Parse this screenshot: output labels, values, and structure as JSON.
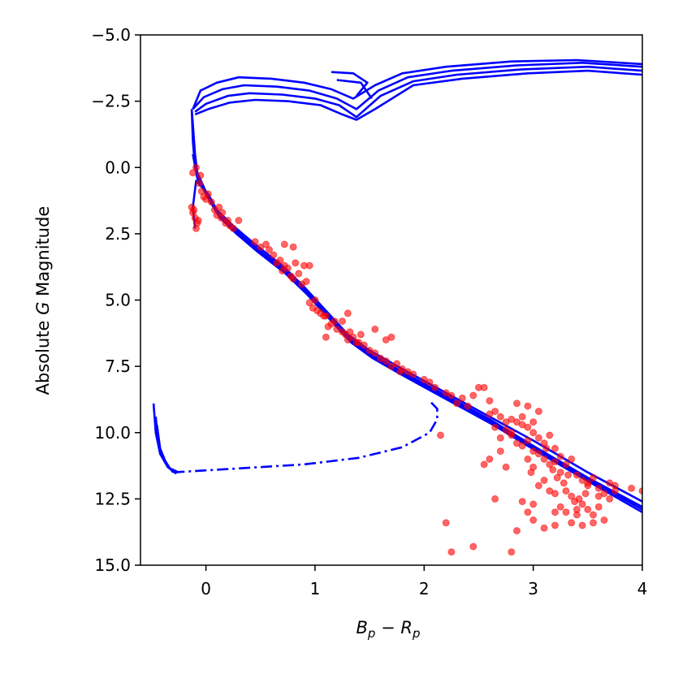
{
  "chart_data": {
    "type": "scatter",
    "title": "",
    "xlabel": "B_p − R_p",
    "ylabel": "Absolute G Magnitude",
    "xlim": [
      -0.6,
      4.0
    ],
    "ylim": [
      15.0,
      -5.0
    ],
    "y_inverted": true,
    "xticks": [
      0,
      1,
      2,
      3,
      4
    ],
    "yticks": [
      -5.0,
      -2.5,
      0.0,
      2.5,
      5.0,
      7.5,
      10.0,
      12.5,
      15.0
    ],
    "xtick_labels": [
      "0",
      "1",
      "2",
      "3",
      "4"
    ],
    "ytick_labels": [
      "−5.0",
      "−2.5",
      "0.0",
      "2.5",
      "5.0",
      "7.5",
      "10.0",
      "12.5",
      "15.0"
    ],
    "colors": {
      "isochrone": "#0000ff",
      "stars": "#ff0000"
    },
    "isochrones": [
      {
        "name": "isochrone-1",
        "points": [
          [
            -0.1,
            2.3
          ],
          [
            -0.12,
            1.5
          ],
          [
            -0.09,
            0.5
          ],
          [
            0.02,
            1.0
          ],
          [
            0.1,
            1.6
          ],
          [
            0.25,
            2.2
          ],
          [
            0.45,
            2.9
          ],
          [
            0.7,
            3.7
          ],
          [
            0.9,
            4.5
          ],
          [
            1.1,
            5.4
          ],
          [
            1.3,
            6.3
          ],
          [
            1.5,
            6.9
          ],
          [
            1.8,
            7.6
          ],
          [
            2.2,
            8.5
          ],
          [
            2.6,
            9.4
          ],
          [
            3.0,
            10.3
          ],
          [
            3.5,
            11.5
          ],
          [
            4.0,
            12.6
          ]
        ]
      },
      {
        "name": "isochrone-2",
        "points": [
          [
            -0.13,
            -2.2
          ],
          [
            -0.12,
            -1.0
          ],
          [
            -0.1,
            0.0
          ],
          [
            0.02,
            1.1
          ],
          [
            0.1,
            1.7
          ],
          [
            0.25,
            2.3
          ],
          [
            0.45,
            3.0
          ],
          [
            0.7,
            3.8
          ],
          [
            0.9,
            4.6
          ],
          [
            1.1,
            5.5
          ],
          [
            1.3,
            6.4
          ],
          [
            1.5,
            7.0
          ],
          [
            1.8,
            7.7
          ],
          [
            2.2,
            8.6
          ],
          [
            2.6,
            9.5
          ],
          [
            3.0,
            10.5
          ],
          [
            3.5,
            11.7
          ],
          [
            4.0,
            12.8
          ]
        ]
      },
      {
        "name": "isochrone-3",
        "points": [
          [
            -0.13,
            -2.2
          ],
          [
            -0.1,
            -0.5
          ],
          [
            -0.08,
            0.2
          ],
          [
            0.03,
            1.2
          ],
          [
            0.12,
            1.8
          ],
          [
            0.27,
            2.4
          ],
          [
            0.47,
            3.1
          ],
          [
            0.72,
            3.9
          ],
          [
            0.92,
            4.7
          ],
          [
            1.12,
            5.6
          ],
          [
            1.32,
            6.5
          ],
          [
            1.52,
            7.1
          ],
          [
            1.82,
            7.8
          ],
          [
            2.22,
            8.7
          ],
          [
            2.62,
            9.6
          ],
          [
            3.02,
            10.6
          ],
          [
            3.52,
            11.8
          ],
          [
            4.0,
            12.9
          ]
        ]
      },
      {
        "name": "isochrone-4",
        "points": [
          [
            -0.12,
            -0.5
          ],
          [
            -0.08,
            0.4
          ],
          [
            0.04,
            1.3
          ],
          [
            0.13,
            1.9
          ],
          [
            0.28,
            2.5
          ],
          [
            0.48,
            3.2
          ],
          [
            0.73,
            4.0
          ],
          [
            0.93,
            4.8
          ],
          [
            1.13,
            5.7
          ],
          [
            1.33,
            6.6
          ],
          [
            1.53,
            7.2
          ],
          [
            1.83,
            7.9
          ],
          [
            2.23,
            8.8
          ],
          [
            2.63,
            9.7
          ],
          [
            3.03,
            10.7
          ],
          [
            3.53,
            11.9
          ],
          [
            4.0,
            13.0
          ]
        ]
      },
      {
        "name": "giant-branch-1",
        "points": [
          [
            -0.12,
            -2.2
          ],
          [
            -0.05,
            -2.9
          ],
          [
            0.1,
            -3.2
          ],
          [
            0.3,
            -3.4
          ],
          [
            0.6,
            -3.35
          ],
          [
            0.9,
            -3.2
          ],
          [
            1.15,
            -2.95
          ],
          [
            1.35,
            -2.6
          ],
          [
            1.55,
            -3.1
          ],
          [
            1.8,
            -3.55
          ],
          [
            2.2,
            -3.8
          ],
          [
            2.8,
            -4.0
          ],
          [
            3.4,
            -4.05
          ],
          [
            4.0,
            -3.9
          ]
        ]
      },
      {
        "name": "giant-branch-2",
        "points": [
          [
            -0.12,
            -2.2
          ],
          [
            -0.02,
            -2.65
          ],
          [
            0.15,
            -2.95
          ],
          [
            0.35,
            -3.1
          ],
          [
            0.65,
            -3.05
          ],
          [
            0.95,
            -2.9
          ],
          [
            1.2,
            -2.6
          ],
          [
            1.38,
            -2.2
          ],
          [
            1.58,
            -2.9
          ],
          [
            1.85,
            -3.4
          ],
          [
            2.25,
            -3.65
          ],
          [
            2.85,
            -3.85
          ],
          [
            3.45,
            -3.95
          ],
          [
            4.0,
            -3.8
          ]
        ]
      },
      {
        "name": "giant-branch-3",
        "points": [
          [
            -0.1,
            -2.1
          ],
          [
            0.0,
            -2.4
          ],
          [
            0.2,
            -2.7
          ],
          [
            0.4,
            -2.8
          ],
          [
            0.7,
            -2.75
          ],
          [
            1.0,
            -2.6
          ],
          [
            1.22,
            -2.35
          ],
          [
            1.38,
            -1.9
          ],
          [
            1.6,
            -2.7
          ],
          [
            1.9,
            -3.25
          ],
          [
            2.3,
            -3.5
          ],
          [
            2.9,
            -3.7
          ],
          [
            3.5,
            -3.8
          ],
          [
            4.0,
            -3.65
          ]
        ]
      },
      {
        "name": "giant-branch-4",
        "points": [
          [
            -0.1,
            -2.0
          ],
          [
            0.02,
            -2.2
          ],
          [
            0.22,
            -2.45
          ],
          [
            0.45,
            -2.55
          ],
          [
            0.75,
            -2.5
          ],
          [
            1.05,
            -2.35
          ],
          [
            1.25,
            -2.0
          ],
          [
            1.38,
            -1.8
          ],
          [
            1.55,
            -2.2
          ],
          [
            1.9,
            -3.1
          ],
          [
            2.35,
            -3.35
          ],
          [
            2.95,
            -3.55
          ],
          [
            3.5,
            -3.65
          ],
          [
            4.0,
            -3.5
          ]
        ]
      },
      {
        "name": "giant-branch-tip",
        "points": [
          [
            1.15,
            -3.6
          ],
          [
            1.35,
            -3.55
          ],
          [
            1.48,
            -3.2
          ],
          [
            1.38,
            -2.7
          ]
        ]
      },
      {
        "name": "giant-branch-tip-2",
        "points": [
          [
            1.2,
            -3.3
          ],
          [
            1.42,
            -3.2
          ],
          [
            1.52,
            -2.6
          ]
        ]
      }
    ],
    "white_dwarf_tracks": [
      {
        "name": "wd-track-1",
        "points": [
          [
            -0.48,
            8.9
          ],
          [
            -0.46,
            10.0
          ],
          [
            -0.42,
            10.8
          ],
          [
            -0.35,
            11.3
          ],
          [
            -0.27,
            11.55
          ]
        ]
      },
      {
        "name": "wd-track-2",
        "points": [
          [
            -0.46,
            9.4
          ],
          [
            -0.44,
            10.3
          ],
          [
            -0.4,
            10.9
          ],
          [
            -0.33,
            11.35
          ],
          [
            -0.25,
            11.5
          ]
        ]
      },
      {
        "name": "wd-track-3",
        "points": [
          [
            -0.45,
            9.7
          ],
          [
            -0.42,
            10.6
          ],
          [
            -0.36,
            11.2
          ],
          [
            -0.3,
            11.5
          ]
        ]
      }
    ],
    "brown_dwarf_branch": {
      "name": "dash-dot-branch",
      "points": [
        [
          -0.3,
          11.5
        ],
        [
          0.3,
          11.35
        ],
        [
          0.9,
          11.2
        ],
        [
          1.4,
          10.95
        ],
        [
          1.8,
          10.55
        ],
        [
          2.05,
          10.0
        ],
        [
          2.12,
          9.5
        ],
        [
          2.12,
          9.1
        ],
        [
          2.05,
          8.8
        ]
      ]
    },
    "stars": [
      [
        -0.13,
        1.5
      ],
      [
        -0.12,
        1.7
      ],
      [
        -0.1,
        1.9
      ],
      [
        -0.11,
        1.6
      ],
      [
        -0.08,
        2.1
      ],
      [
        -0.09,
        2.3
      ],
      [
        -0.07,
        2.0
      ],
      [
        -0.12,
        0.2
      ],
      [
        -0.09,
        0.0
      ],
      [
        -0.06,
        0.6
      ],
      [
        -0.04,
        0.9
      ],
      [
        -0.05,
        0.3
      ],
      [
        -0.02,
        1.1
      ],
      [
        0.0,
        1.2
      ],
      [
        0.02,
        1.0
      ],
      [
        0.05,
        1.3
      ],
      [
        0.08,
        1.6
      ],
      [
        0.1,
        1.8
      ],
      [
        0.12,
        1.5
      ],
      [
        0.14,
        1.9
      ],
      [
        0.18,
        2.1
      ],
      [
        0.2,
        2.0
      ],
      [
        0.22,
        2.2
      ],
      [
        0.25,
        2.3
      ],
      [
        0.15,
        1.7
      ],
      [
        0.3,
        2.0
      ],
      [
        0.45,
        2.8
      ],
      [
        0.5,
        3.0
      ],
      [
        0.55,
        2.9
      ],
      [
        0.58,
        3.1
      ],
      [
        0.62,
        3.3
      ],
      [
        0.65,
        3.6
      ],
      [
        0.68,
        3.5
      ],
      [
        0.7,
        3.9
      ],
      [
        0.72,
        3.7
      ],
      [
        0.75,
        3.8
      ],
      [
        0.78,
        4.1
      ],
      [
        0.8,
        4.2
      ],
      [
        0.82,
        3.6
      ],
      [
        0.85,
        4.0
      ],
      [
        0.88,
        4.4
      ],
      [
        0.9,
        3.7
      ],
      [
        0.72,
        2.9
      ],
      [
        0.95,
        3.7
      ],
      [
        0.8,
        3.0
      ],
      [
        0.92,
        4.3
      ],
      [
        0.95,
        5.1
      ],
      [
        0.98,
        5.3
      ],
      [
        1.0,
        5.0
      ],
      [
        1.02,
        5.4
      ],
      [
        1.05,
        5.5
      ],
      [
        1.08,
        5.6
      ],
      [
        1.1,
        5.6
      ],
      [
        1.12,
        6.0
      ],
      [
        1.15,
        5.9
      ],
      [
        1.18,
        5.8
      ],
      [
        1.2,
        6.1
      ],
      [
        1.25,
        6.2
      ],
      [
        1.28,
        6.3
      ],
      [
        1.3,
        6.5
      ],
      [
        1.32,
        6.2
      ],
      [
        1.35,
        6.4
      ],
      [
        1.38,
        6.6
      ],
      [
        1.4,
        6.6
      ],
      [
        1.42,
        6.3
      ],
      [
        1.3,
        5.5
      ],
      [
        1.5,
        6.9
      ],
      [
        1.55,
        7.0
      ],
      [
        1.45,
        6.7
      ],
      [
        1.1,
        6.4
      ],
      [
        1.25,
        5.8
      ],
      [
        1.6,
        7.2
      ],
      [
        1.7,
        7.5
      ],
      [
        1.75,
        7.4
      ],
      [
        1.8,
        7.6
      ],
      [
        1.85,
        7.7
      ],
      [
        1.9,
        7.8
      ],
      [
        2.0,
        8.0
      ],
      [
        2.05,
        8.1
      ],
      [
        1.65,
        7.3
      ],
      [
        1.78,
        7.7
      ],
      [
        1.55,
        6.1
      ],
      [
        1.7,
        6.4
      ],
      [
        1.65,
        6.5
      ],
      [
        2.1,
        8.3
      ],
      [
        2.2,
        8.5
      ],
      [
        2.25,
        8.6
      ],
      [
        2.3,
        8.9
      ],
      [
        2.35,
        8.7
      ],
      [
        2.4,
        9.0
      ],
      [
        2.45,
        8.6
      ],
      [
        2.5,
        8.3
      ],
      [
        2.55,
        8.3
      ],
      [
        2.6,
        8.8
      ],
      [
        2.65,
        9.2
      ],
      [
        2.7,
        9.4
      ],
      [
        2.75,
        9.6
      ],
      [
        2.8,
        9.5
      ],
      [
        2.85,
        9.6
      ],
      [
        2.9,
        9.7
      ],
      [
        2.95,
        9.8
      ],
      [
        3.0,
        10.0
      ],
      [
        3.05,
        10.2
      ],
      [
        3.1,
        10.4
      ],
      [
        3.15,
        10.1
      ],
      [
        3.2,
        10.6
      ],
      [
        3.25,
        10.9
      ],
      [
        3.3,
        11.2
      ],
      [
        3.35,
        11.0
      ],
      [
        3.4,
        11.6
      ],
      [
        3.45,
        11.8
      ],
      [
        3.5,
        11.9
      ],
      [
        3.55,
        11.7
      ],
      [
        3.6,
        12.1
      ],
      [
        3.65,
        12.3
      ],
      [
        3.7,
        11.9
      ],
      [
        3.75,
        12.2
      ],
      [
        2.7,
        10.2
      ],
      [
        2.8,
        10.1
      ],
      [
        2.85,
        10.4
      ],
      [
        2.9,
        10.5
      ],
      [
        2.95,
        10.3
      ],
      [
        3.0,
        10.7
      ],
      [
        3.05,
        10.8
      ],
      [
        3.1,
        11.0
      ],
      [
        3.12,
        10.6
      ],
      [
        3.15,
        11.2
      ],
      [
        3.18,
        11.4
      ],
      [
        3.2,
        11.1
      ],
      [
        3.22,
        11.7
      ],
      [
        3.25,
        11.5
      ],
      [
        3.28,
        11.9
      ],
      [
        3.3,
        12.2
      ],
      [
        3.32,
        11.6
      ],
      [
        3.35,
        12.4
      ],
      [
        3.38,
        12.6
      ],
      [
        3.4,
        12.9
      ],
      [
        3.42,
        12.5
      ],
      [
        3.45,
        12.7
      ],
      [
        3.48,
        12.3
      ],
      [
        3.5,
        12.9
      ],
      [
        3.55,
        13.1
      ],
      [
        3.6,
        12.8
      ],
      [
        3.65,
        13.3
      ],
      [
        3.7,
        12.5
      ],
      [
        2.6,
        9.3
      ],
      [
        2.65,
        9.8
      ],
      [
        2.75,
        9.9
      ],
      [
        2.8,
        10.0
      ],
      [
        2.9,
        9.4
      ],
      [
        3.0,
        9.6
      ],
      [
        3.05,
        9.2
      ],
      [
        2.95,
        9.0
      ],
      [
        2.85,
        8.9
      ],
      [
        3.0,
        11.3
      ],
      [
        3.1,
        11.8
      ],
      [
        3.2,
        12.3
      ],
      [
        3.25,
        12.8
      ],
      [
        3.3,
        13.0
      ],
      [
        3.05,
        12.0
      ],
      [
        3.15,
        12.2
      ],
      [
        3.2,
        13.5
      ],
      [
        3.35,
        13.4
      ],
      [
        3.45,
        13.5
      ],
      [
        3.55,
        13.4
      ],
      [
        3.0,
        13.3
      ],
      [
        3.1,
        13.6
      ],
      [
        3.2,
        13.0
      ],
      [
        3.4,
        13.1
      ],
      [
        3.5,
        12.0
      ],
      [
        3.6,
        12.4
      ],
      [
        3.75,
        12.0
      ],
      [
        3.9,
        12.1
      ],
      [
        4.0,
        12.2
      ],
      [
        2.55,
        11.2
      ],
      [
        2.6,
        11.0
      ],
      [
        2.7,
        10.7
      ],
      [
        2.75,
        11.3
      ],
      [
        2.95,
        11.0
      ],
      [
        2.98,
        11.5
      ],
      [
        2.9,
        12.6
      ],
      [
        2.95,
        13.0
      ],
      [
        3.0,
        12.7
      ],
      [
        2.85,
        13.7
      ],
      [
        2.8,
        14.5
      ],
      [
        2.45,
        14.3
      ],
      [
        2.25,
        14.5
      ],
      [
        2.2,
        13.4
      ],
      [
        2.65,
        12.5
      ],
      [
        2.15,
        10.1
      ]
    ]
  }
}
